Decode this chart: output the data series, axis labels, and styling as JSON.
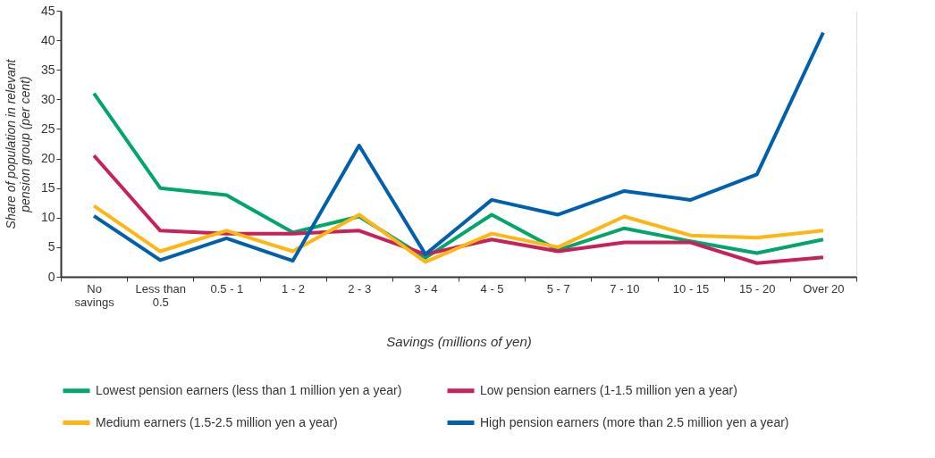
{
  "chart_data": {
    "type": "line",
    "xlabel": "Savings (millions of yen)",
    "ylabel": "Share of population in relevant pension group (per cent)",
    "categories": [
      "No\nsavings",
      "Less than\n0.5",
      "0.5 - 1",
      "1 - 2",
      "2 - 3",
      "3 - 4",
      "4 - 5",
      "5 - 7",
      "7 - 10",
      "10 - 15",
      "15 - 20",
      "Over 20"
    ],
    "series": [
      {
        "name": "Lowest pension earners (less than 1 million yen a year)",
        "color": "#00a66a",
        "values": [
          31,
          15,
          13.8,
          7.5,
          10.2,
          3.2,
          10.5,
          4.5,
          8.2,
          6,
          4,
          6.3
        ]
      },
      {
        "name": "Low pension earners (1-1.5 million yen a year)",
        "color": "#c8205a",
        "values": [
          20.5,
          7.8,
          7.3,
          7.3,
          7.8,
          3.8,
          6.3,
          4.3,
          5.8,
          5.8,
          2.3,
          3.3
        ]
      },
      {
        "name": "Medium earners (1.5-2.5 million yen a year)",
        "color": "#ffb612",
        "values": [
          12,
          4.3,
          7.8,
          4.3,
          10.5,
          2.5,
          7.3,
          5,
          10.2,
          7,
          6.6,
          7.8
        ]
      },
      {
        "name": "High pension earners (more than 2.5 million yen a year)",
        "color": "#0060ad",
        "values": [
          10.3,
          2.8,
          6.5,
          2.7,
          22.2,
          3.8,
          13,
          10.5,
          14.5,
          13,
          17.3,
          41.3
        ]
      }
    ],
    "ylim": [
      0,
      45
    ],
    "yticks": [
      0,
      5,
      10,
      15,
      20,
      25,
      30,
      35,
      40,
      45
    ],
    "grid": "y",
    "legend": "bottom",
    "marker": "none",
    "line_style": "solid"
  }
}
